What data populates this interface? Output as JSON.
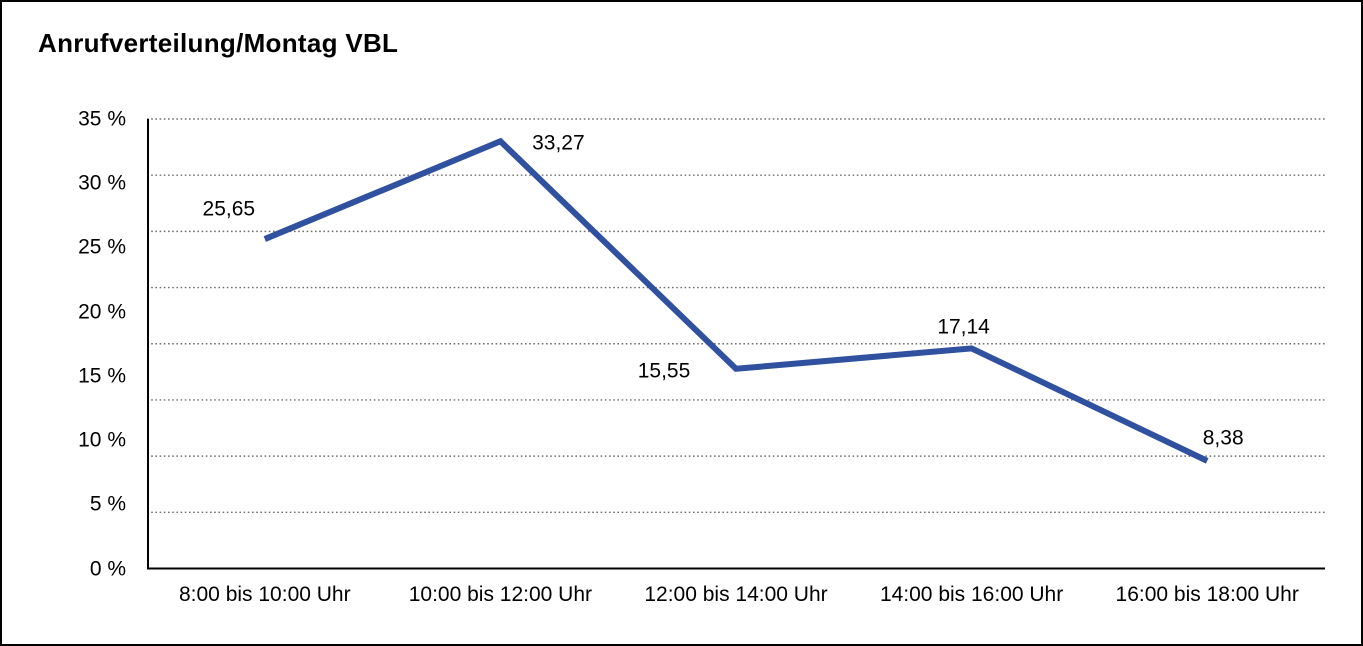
{
  "chart_data": {
    "type": "line",
    "title": "Anrufverteilung/Montag VBL",
    "categories": [
      "8:00 bis 10:00 Uhr",
      "10:00 bis 12:00 Uhr",
      "12:00 bis 14:00 Uhr",
      "14:00 bis 16:00 Uhr",
      "16:00 bis 18:00 Uhr"
    ],
    "values": [
      25.65,
      33.27,
      15.55,
      17.14,
      8.38
    ],
    "value_labels": [
      "25,65",
      "33,27",
      "15,55",
      "17,14",
      "8,38"
    ],
    "y_tick_values": [
      35,
      30,
      25,
      20,
      15,
      10,
      5,
      0
    ],
    "y_tick_labels": [
      "35 %",
      "30 %",
      "25 %",
      "20 %",
      "15 %",
      "10 %",
      "5 %",
      "0 %"
    ],
    "ylim": [
      0,
      35
    ],
    "xlabel": "",
    "ylabel": "",
    "legend": "none",
    "grid": "horizontal-dotted",
    "gridline_count": 9,
    "line_color": "#30519f",
    "axis_color": "#000000",
    "gridline_color": "#6e6e6e",
    "background_color": "#ffffff"
  }
}
